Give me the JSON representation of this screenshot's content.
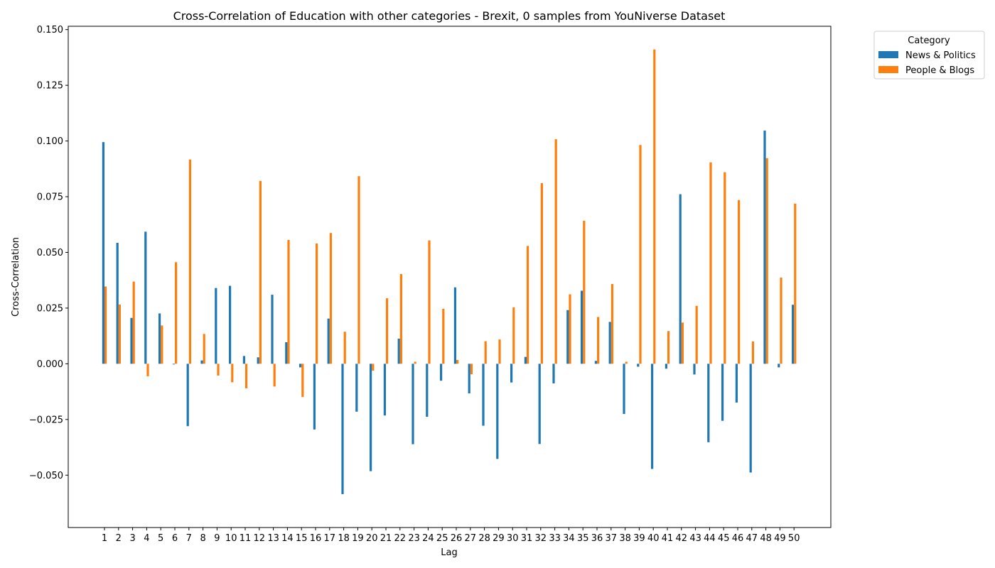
{
  "chart_data": {
    "type": "bar",
    "title": "Cross-Correlation of Education with other categories - Brexit, 0 samples from YouNiverse Dataset",
    "xlabel": "Lag",
    "ylabel": "Cross-Correlation",
    "ylim": [
      -0.0735,
      0.1515
    ],
    "yticks": [
      -0.05,
      -0.025,
      0.0,
      0.025,
      0.05,
      0.075,
      0.1,
      0.125,
      0.15
    ],
    "ytick_labels": [
      "−0.050",
      "−0.025",
      "0.000",
      "0.025",
      "0.050",
      "0.075",
      "0.100",
      "0.125",
      "0.150"
    ],
    "grid": false,
    "legend": {
      "title": "Category",
      "position": "upper right, outside plot"
    },
    "categories": [
      "1",
      "2",
      "3",
      "4",
      "5",
      "6",
      "7",
      "8",
      "9",
      "10",
      "11",
      "12",
      "13",
      "14",
      "15",
      "16",
      "17",
      "18",
      "19",
      "20",
      "21",
      "22",
      "23",
      "24",
      "25",
      "26",
      "27",
      "28",
      "29",
      "30",
      "31",
      "32",
      "33",
      "34",
      "35",
      "36",
      "37",
      "38",
      "39",
      "40",
      "41",
      "42",
      "43",
      "44",
      "45",
      "46",
      "47",
      "48",
      "49",
      "50"
    ],
    "series": [
      {
        "name": "News & Politics",
        "color": "#1f77b4",
        "values": [
          0.0995,
          0.0543,
          0.0206,
          0.0593,
          0.0226,
          -0.0003,
          -0.028,
          0.0015,
          0.034,
          0.035,
          0.0035,
          0.0029,
          0.031,
          0.0097,
          -0.0016,
          -0.0295,
          0.0203,
          -0.0585,
          -0.0215,
          -0.0482,
          -0.0232,
          0.0113,
          -0.0361,
          -0.0238,
          -0.0076,
          0.0343,
          -0.0133,
          -0.0278,
          -0.0427,
          -0.0084,
          0.0031,
          -0.036,
          -0.0088,
          0.0241,
          0.0328,
          0.0013,
          0.0188,
          -0.0225,
          -0.0013,
          -0.0472,
          -0.0022,
          0.0761,
          -0.0048,
          -0.0352,
          -0.0256,
          -0.0174,
          -0.0488,
          0.1047,
          -0.0016,
          0.0265
        ]
      },
      {
        "name": "People & Blogs",
        "color": "#ff7f0e",
        "values": [
          0.0347,
          0.0266,
          0.0369,
          -0.0056,
          0.0172,
          0.0456,
          0.0917,
          0.0134,
          -0.0053,
          -0.0083,
          -0.011,
          0.0821,
          -0.0102,
          0.0556,
          -0.0149,
          0.054,
          0.0587,
          0.0144,
          0.0842,
          -0.0031,
          0.0294,
          0.0403,
          0.0009,
          0.0554,
          0.0247,
          0.0017,
          -0.0047,
          0.0101,
          0.0109,
          0.0253,
          0.0529,
          0.0811,
          0.1008,
          0.0312,
          0.0642,
          0.021,
          0.0358,
          0.0009,
          0.0982,
          0.1411,
          0.0147,
          0.0185,
          0.026,
          0.0904,
          0.086,
          0.0735,
          0.01,
          0.0923,
          0.0387,
          0.0719
        ]
      }
    ]
  }
}
